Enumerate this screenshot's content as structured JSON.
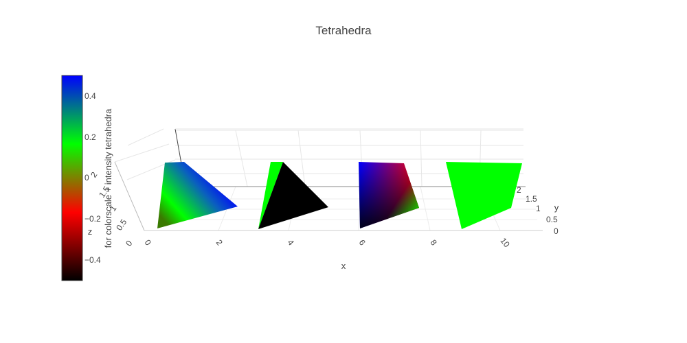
{
  "chart_data": {
    "type": "mesh3d",
    "title": "Tetrahedra",
    "scene": {
      "xaxis": {
        "title": "x",
        "ticks": [
          "0",
          "2",
          "4",
          "6",
          "8",
          "10"
        ]
      },
      "yaxis": {
        "title": "y",
        "ticks": [
          "0",
          "0.5",
          "1",
          "1.5",
          "2"
        ]
      },
      "zaxis": {
        "title": "z",
        "ticks": [
          "0",
          "0.5",
          "1",
          "1.5",
          "2"
        ]
      }
    },
    "colorbar": {
      "title": "for colorscale + intensity tetrahedra",
      "range": [
        -0.5,
        0.5
      ],
      "ticks": [
        "0.4",
        "0.2",
        "0",
        "−0.2",
        "−0.4"
      ],
      "colorscale": [
        "#000000",
        "#ff0000",
        "#00ff00",
        "#0000ff"
      ]
    },
    "series": [
      {
        "shading": "intensity",
        "colors": [
          "#3a7a00",
          "#00ff00",
          "#0000ff",
          "#0a5fbf"
        ]
      },
      {
        "shading": "facecolor",
        "colors": [
          "#00ff00",
          "#000000"
        ]
      },
      {
        "shading": "vertexcolor",
        "colors": [
          "#0000ff",
          "#ff0000",
          "#000000",
          "#00ff00"
        ]
      },
      {
        "shading": "flat",
        "colors": [
          "#00ff00"
        ]
      }
    ]
  }
}
